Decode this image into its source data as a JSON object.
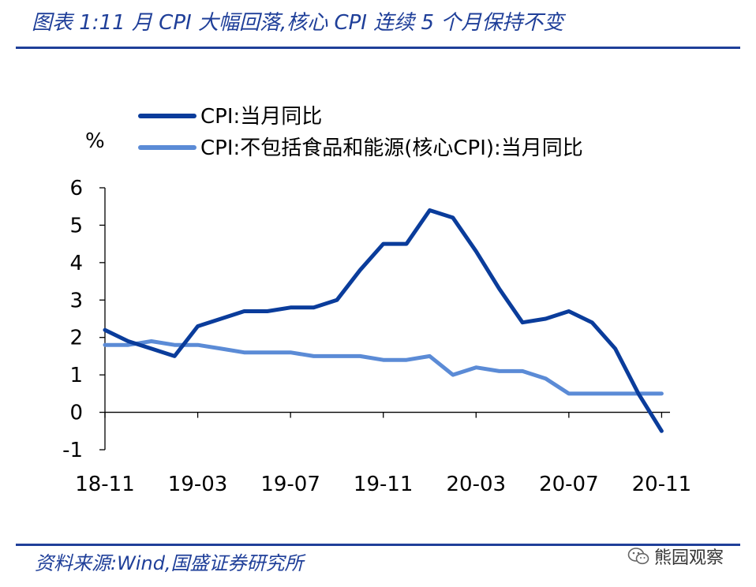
{
  "header": {
    "title": "图表 1:11 月 CPI 大幅回落,核心 CPI 连续 5 个月保持不变"
  },
  "footer": {
    "source": "资料来源:Wind,国盛证券研究所",
    "watermark": "熊园观察"
  },
  "colors": {
    "accent": "#1f3f99",
    "cpi_line": "#0a3c9b",
    "core_line": "#5b8bd6"
  },
  "chart_data": {
    "type": "line",
    "ylabel": "%",
    "ylim": [
      -1,
      6
    ],
    "yticks": [
      -1,
      0,
      1,
      2,
      3,
      4,
      5,
      6
    ],
    "xtick_labels": [
      "18-11",
      "19-03",
      "19-07",
      "19-11",
      "20-03",
      "20-07",
      "20-11"
    ],
    "x": [
      "18-11",
      "18-12",
      "19-01",
      "19-02",
      "19-03",
      "19-04",
      "19-05",
      "19-06",
      "19-07",
      "19-08",
      "19-09",
      "19-10",
      "19-11",
      "19-12",
      "20-01",
      "20-02",
      "20-03",
      "20-04",
      "20-05",
      "20-06",
      "20-07",
      "20-08",
      "20-09",
      "20-10",
      "20-11"
    ],
    "legend_position": "top",
    "grid": false,
    "series": [
      {
        "name": "CPI:当月同比",
        "values": [
          2.2,
          1.9,
          1.7,
          1.5,
          2.3,
          2.5,
          2.7,
          2.7,
          2.8,
          2.8,
          3.0,
          3.8,
          4.5,
          4.5,
          5.4,
          5.2,
          4.3,
          3.3,
          2.4,
          2.5,
          2.7,
          2.4,
          1.7,
          0.5,
          -0.5
        ]
      },
      {
        "name": "CPI:不包括食品和能源(核心CPI):当月同比",
        "values": [
          1.8,
          1.8,
          1.9,
          1.8,
          1.8,
          1.7,
          1.6,
          1.6,
          1.6,
          1.5,
          1.5,
          1.5,
          1.4,
          1.4,
          1.5,
          1.0,
          1.2,
          1.1,
          1.1,
          0.9,
          0.5,
          0.5,
          0.5,
          0.5,
          0.5
        ]
      }
    ]
  }
}
